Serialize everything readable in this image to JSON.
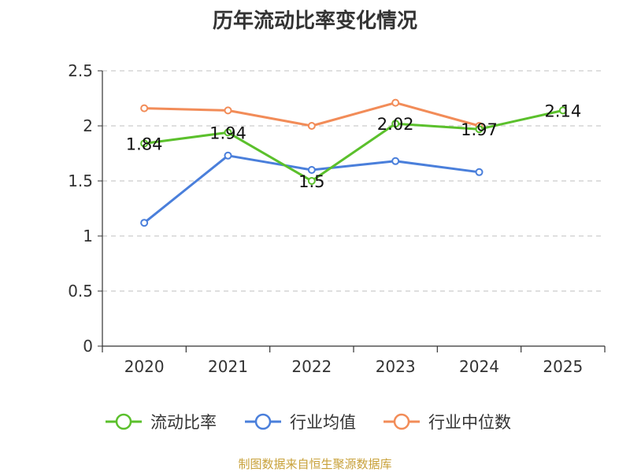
{
  "chart_data": {
    "type": "line",
    "title": "历年流动比率变化情况",
    "categories": [
      "2020",
      "2021",
      "2022",
      "2023",
      "2024",
      "2025"
    ],
    "yticks": [
      "0",
      "0.5",
      "1",
      "1.5",
      "2",
      "2.5"
    ],
    "ylim": [
      0,
      2.5
    ],
    "grid": true,
    "legend_position": "bottom",
    "series": [
      {
        "name": "流动比率",
        "color": "#5bc02c",
        "values": [
          1.84,
          1.94,
          1.5,
          2.02,
          1.97,
          2.14
        ],
        "labels": [
          "1.84",
          "1.94",
          "1.5",
          "2.02",
          "1.97",
          "2.14"
        ]
      },
      {
        "name": "行业均值",
        "color": "#4a7fdb",
        "values": [
          1.12,
          1.73,
          1.6,
          1.68,
          1.58,
          null
        ]
      },
      {
        "name": "行业中位数",
        "color": "#f28c58",
        "values": [
          2.16,
          2.14,
          2.0,
          2.21,
          2.0,
          null
        ]
      }
    ]
  },
  "source": "制图数据来自恒生聚源数据库"
}
